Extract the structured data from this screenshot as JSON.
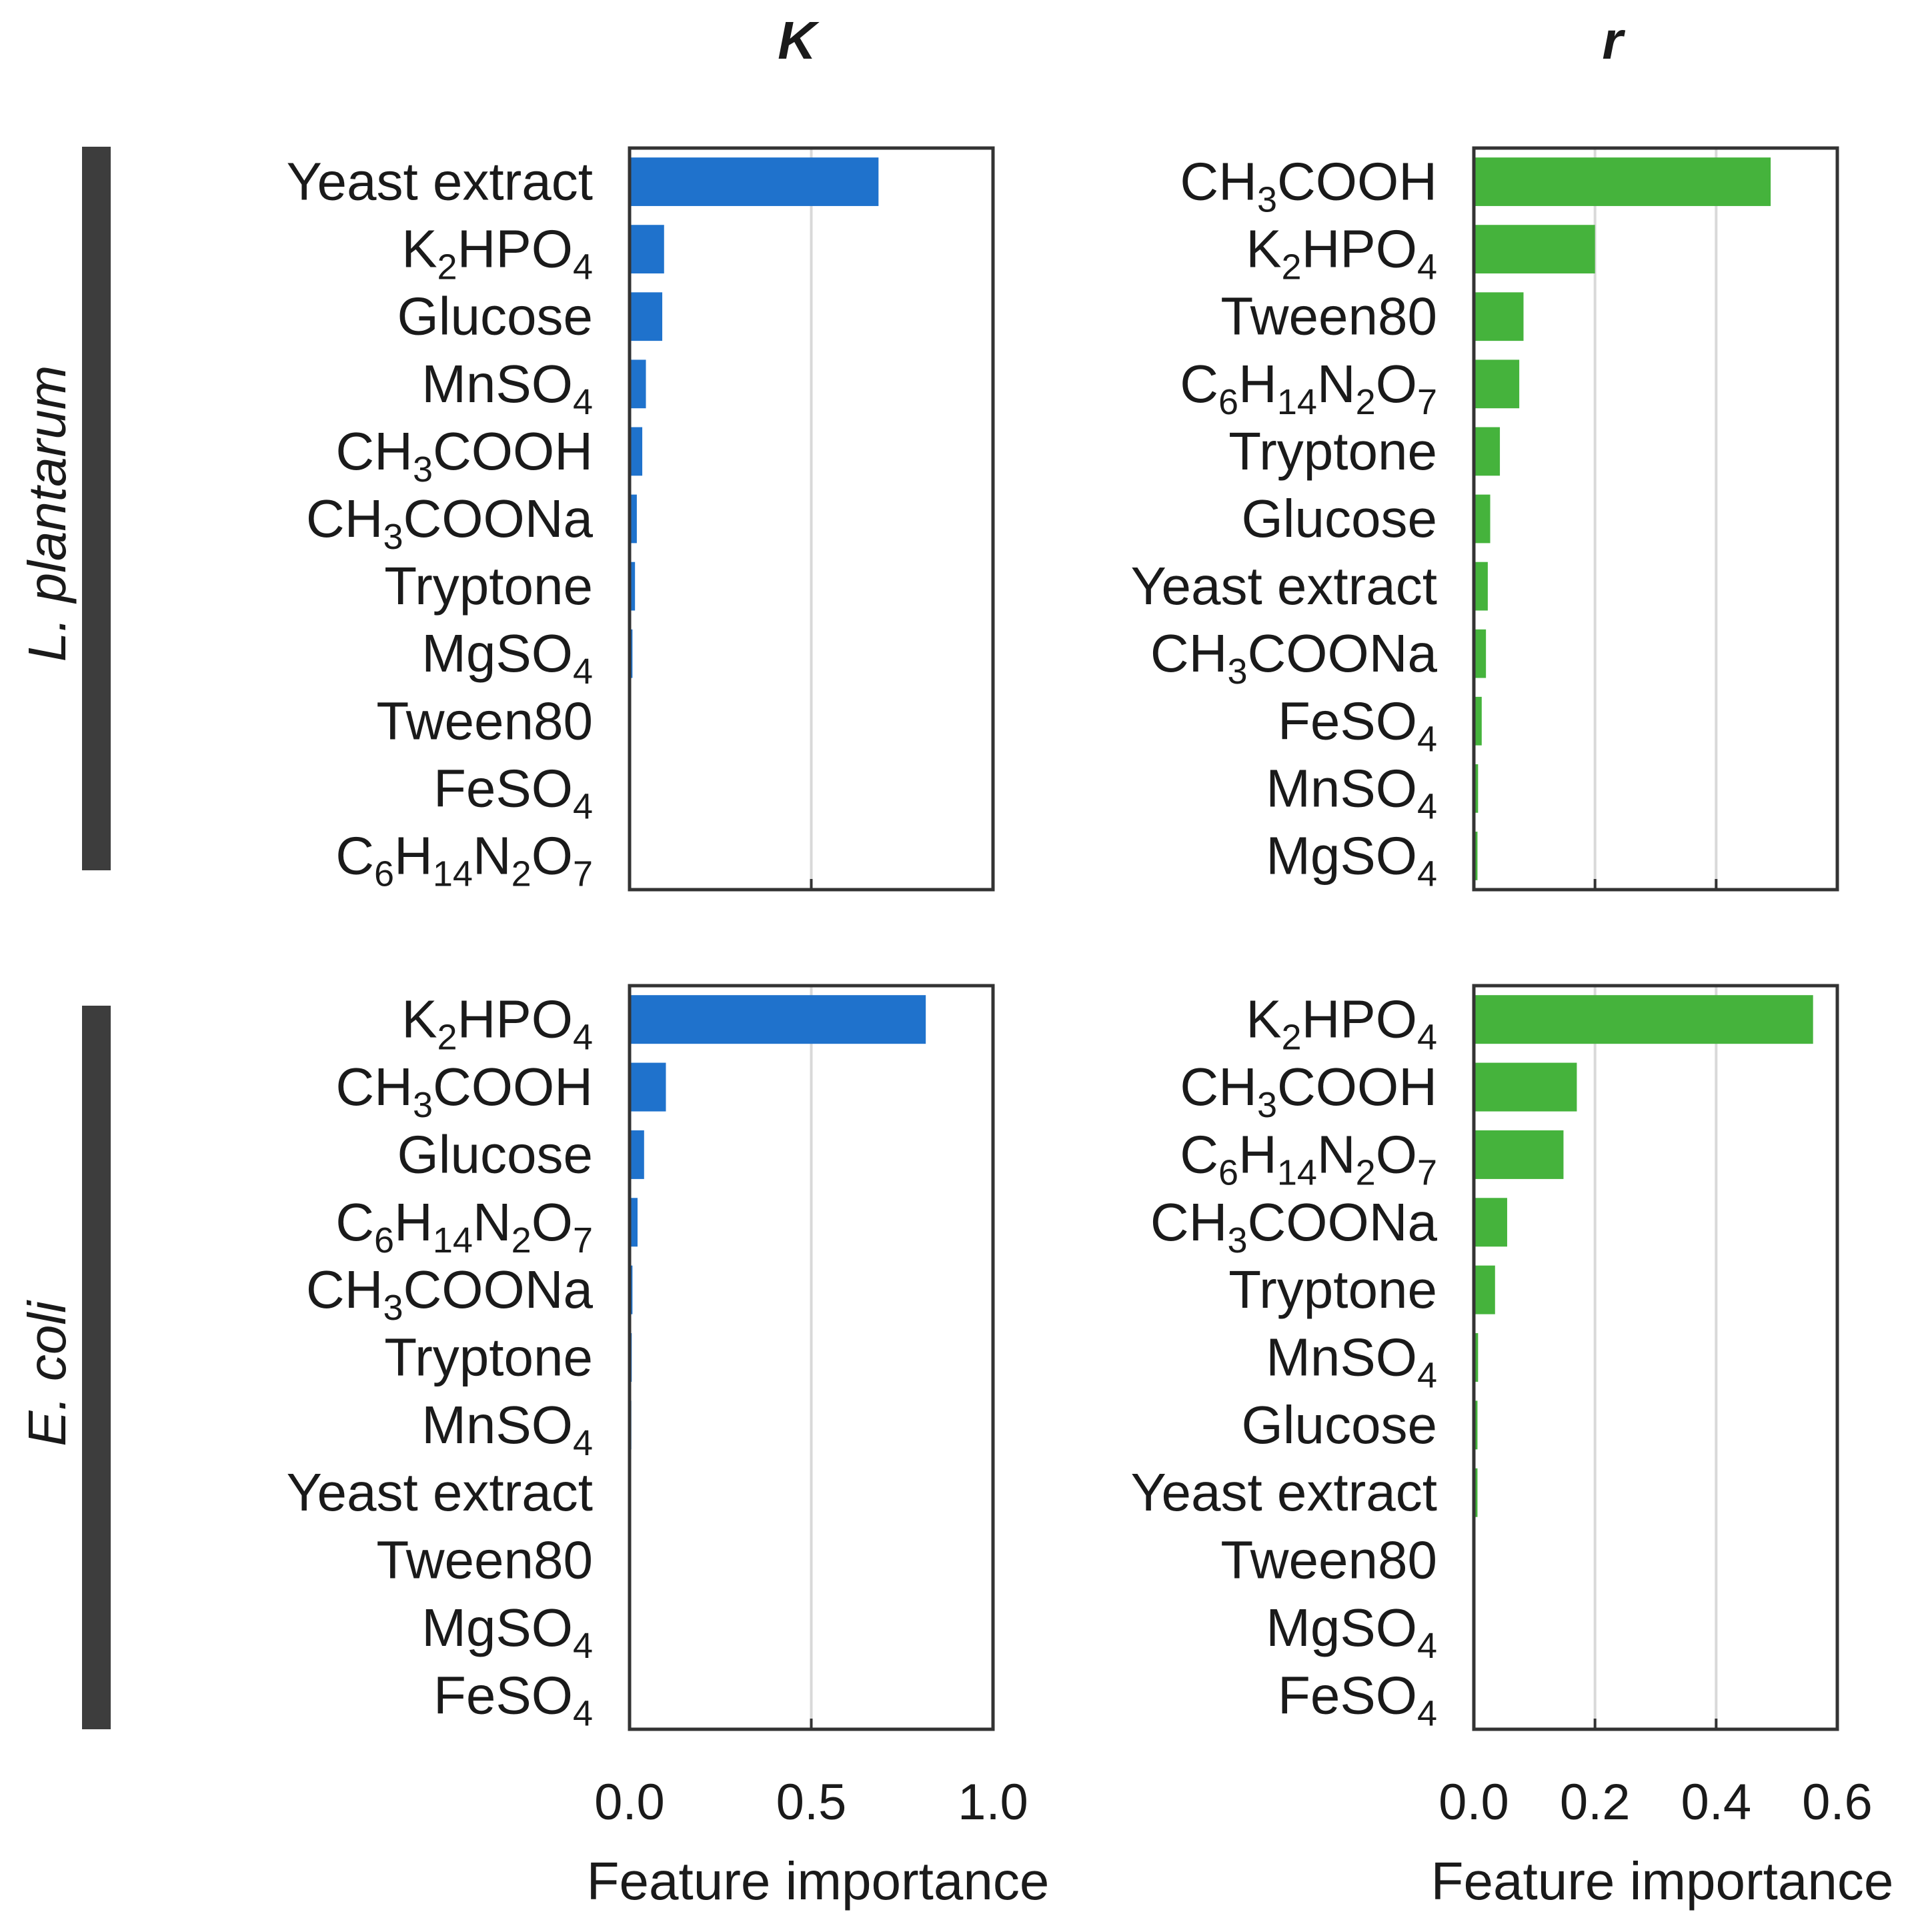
{
  "figure": {
    "column_titles": [
      "K",
      "r"
    ],
    "row_labels": [
      "L. plantarum",
      "E. coli"
    ],
    "colors": {
      "K": "#1f72cc",
      "r": "#45b33c",
      "frame": "#333333",
      "grid": "#d9d9d9",
      "side_bar": "#3d3d3d"
    }
  },
  "chart_data": [
    {
      "type": "bar",
      "orientation": "horizontal",
      "title": "K",
      "row": "L. plantarum",
      "xlabel": "Feature importance",
      "ylabel": "",
      "xlim": [
        0,
        1.0
      ],
      "xticks": [
        0.0,
        0.5,
        1.0
      ],
      "xtick_labels": [
        "0.0",
        "0.5",
        "1.0"
      ],
      "grid": true,
      "color": "#1f72cc",
      "categories": [
        "Yeast extract",
        "K2HPO4",
        "Glucose",
        "MnSO4",
        "CH3COOH",
        "CH3COONa",
        "Tryptone",
        "MgSO4",
        "Tween80",
        "FeSO4",
        "C6H14N2O7"
      ],
      "values": [
        0.685,
        0.095,
        0.09,
        0.045,
        0.035,
        0.02,
        0.015,
        0.008,
        0.004,
        0.002,
        0.001
      ]
    },
    {
      "type": "bar",
      "orientation": "horizontal",
      "title": "r",
      "row": "L. plantarum",
      "xlabel": "Feature importance",
      "ylabel": "",
      "xlim": [
        0,
        0.6
      ],
      "xticks": [
        0.0,
        0.2,
        0.4,
        0.6
      ],
      "xtick_labels": [
        "0.0",
        "0.2",
        "0.4",
        "0.6"
      ],
      "grid": true,
      "color": "#45b33c",
      "categories": [
        "CH3COOH",
        "K2HPO4",
        "Tween80",
        "C6H14N2O7",
        "Tryptone",
        "Glucose",
        "Yeast extract",
        "CH3COONa",
        "FeSO4",
        "MnSO4",
        "MgSO4"
      ],
      "values": [
        0.49,
        0.2,
        0.082,
        0.075,
        0.043,
        0.027,
        0.023,
        0.02,
        0.013,
        0.007,
        0.006
      ]
    },
    {
      "type": "bar",
      "orientation": "horizontal",
      "title": "K",
      "row": "E. coli",
      "xlabel": "Feature importance",
      "ylabel": "",
      "xlim": [
        0,
        1.0
      ],
      "xticks": [
        0.0,
        0.5,
        1.0
      ],
      "xtick_labels": [
        "0.0",
        "0.5",
        "1.0"
      ],
      "grid": true,
      "color": "#1f72cc",
      "categories": [
        "K2HPO4",
        "CH3COOH",
        "Glucose",
        "C6H14N2O7",
        "CH3COONa",
        "Tryptone",
        "MnSO4",
        "Yeast extract",
        "Tween80",
        "MgSO4",
        "FeSO4"
      ],
      "values": [
        0.815,
        0.1,
        0.04,
        0.022,
        0.008,
        0.006,
        0.005,
        0.004,
        0.002,
        0.001,
        0.001
      ]
    },
    {
      "type": "bar",
      "orientation": "horizontal",
      "title": "r",
      "row": "E. coli",
      "xlabel": "Feature importance",
      "ylabel": "",
      "xlim": [
        0,
        0.6
      ],
      "xticks": [
        0.0,
        0.2,
        0.4,
        0.6
      ],
      "xtick_labels": [
        "0.0",
        "0.2",
        "0.4",
        "0.6"
      ],
      "grid": true,
      "color": "#45b33c",
      "categories": [
        "K2HPO4",
        "CH3COOH",
        "C6H14N2O7",
        "CH3COONa",
        "Tryptone",
        "MnSO4",
        "Glucose",
        "Yeast extract",
        "Tween80",
        "MgSO4",
        "FeSO4"
      ],
      "values": [
        0.56,
        0.17,
        0.148,
        0.055,
        0.035,
        0.007,
        0.006,
        0.006,
        0.002,
        0.001,
        0.001
      ]
    }
  ]
}
